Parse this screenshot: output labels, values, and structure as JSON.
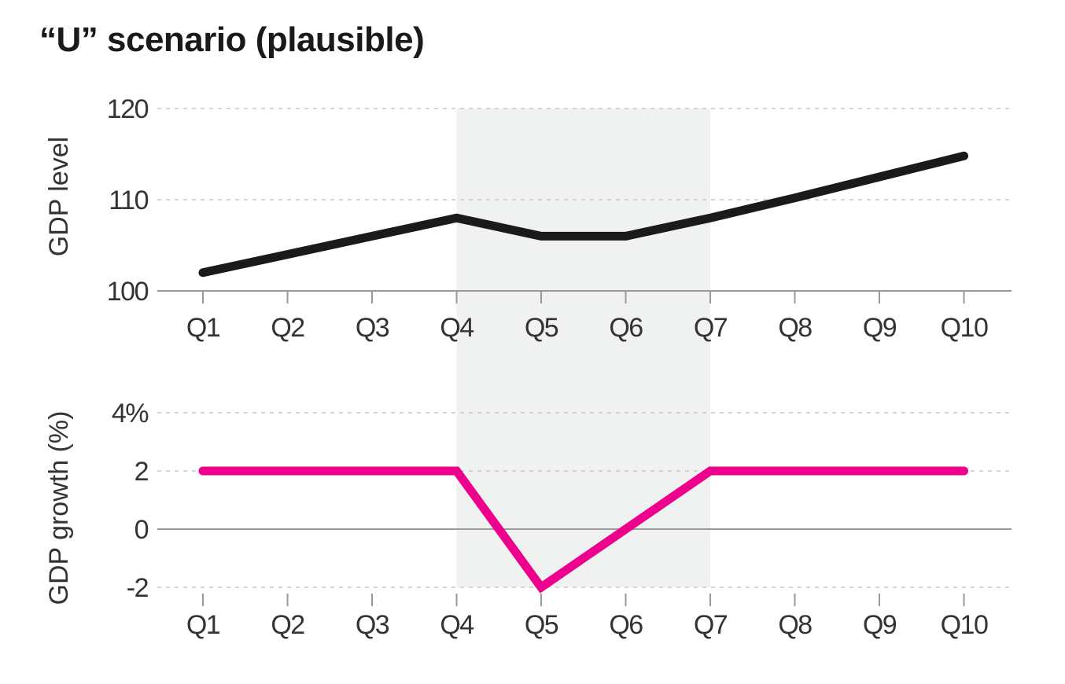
{
  "title": "“U” scenario (plausible)",
  "colors": {
    "level_line": "#1a1a1a",
    "growth_line": "#ec008c",
    "shade": "#f0f1f1",
    "grid": "#c8c8c8",
    "axis": "#9a9a9a",
    "text": "#333333"
  },
  "chart_data": [
    {
      "type": "line",
      "title": "",
      "xlabel": "",
      "ylabel": "GDP level",
      "categories": [
        "Q1",
        "Q2",
        "Q3",
        "Q4",
        "Q5",
        "Q6",
        "Q7",
        "Q8",
        "Q9",
        "Q10"
      ],
      "values": [
        102,
        104,
        106,
        108,
        106,
        106,
        108,
        110.2,
        112.5,
        114.8
      ],
      "ylim": [
        100,
        120
      ],
      "yticks": [
        "100",
        "110",
        "120"
      ],
      "shaded_range": [
        "Q4",
        "Q7"
      ],
      "grid": true
    },
    {
      "type": "line",
      "title": "",
      "xlabel": "",
      "ylabel": "GDP growth (%)",
      "categories": [
        "Q1",
        "Q2",
        "Q3",
        "Q4",
        "Q5",
        "Q6",
        "Q7",
        "Q8",
        "Q9",
        "Q10"
      ],
      "values": [
        2,
        2,
        2,
        2,
        -2,
        0,
        2,
        2,
        2,
        2
      ],
      "ylim": [
        -2,
        4
      ],
      "yticks": [
        "-2",
        "0",
        "2",
        "4%"
      ],
      "shaded_range": [
        "Q4",
        "Q7"
      ],
      "grid": true
    }
  ]
}
